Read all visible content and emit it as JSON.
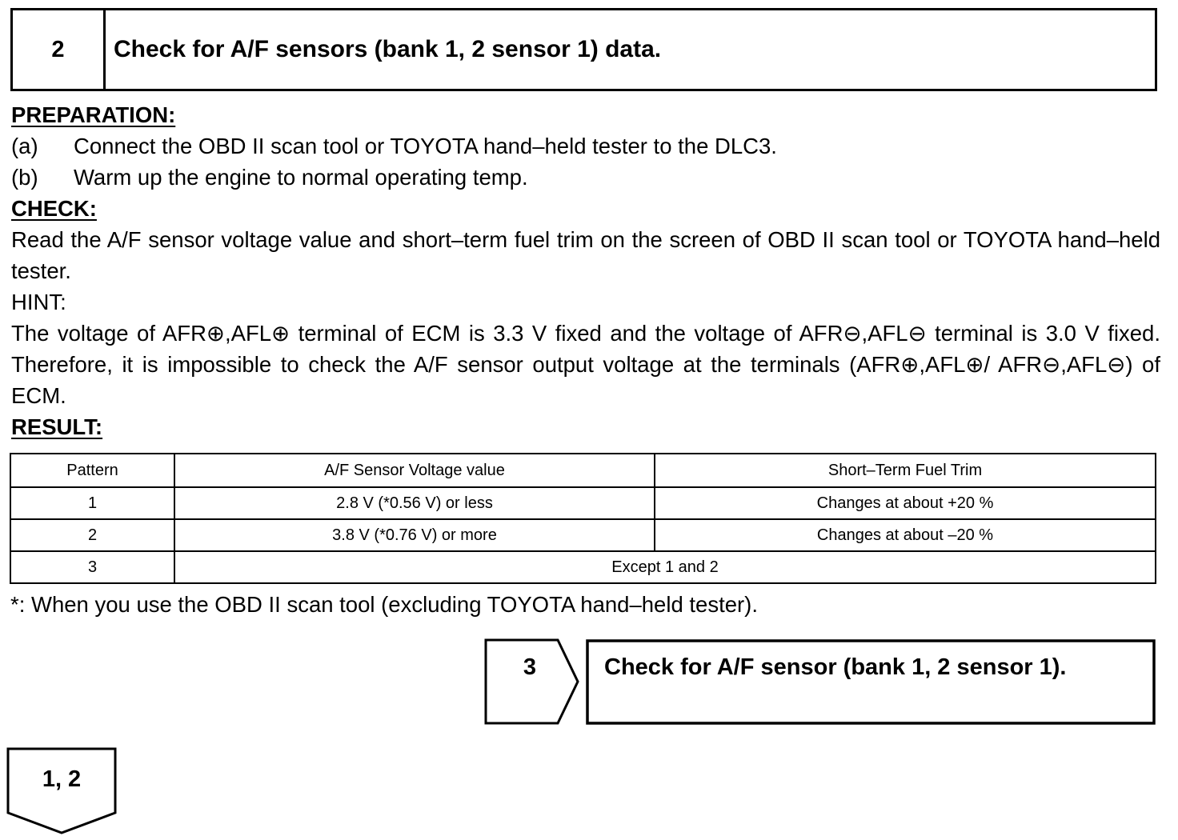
{
  "step": {
    "number": "2",
    "title": "Check for A/F sensors (bank 1, 2 sensor 1) data."
  },
  "preparation": {
    "heading": "PREPARATION:",
    "items": [
      {
        "label": "(a)",
        "text": "Connect the OBD II scan tool or TOYOTA hand–held tester to the DLC3."
      },
      {
        "label": "(b)",
        "text": "Warm up the engine to normal operating temp."
      }
    ]
  },
  "check": {
    "heading": "CHECK:",
    "text": "Read the A/F sensor voltage value and short–term fuel trim on the screen of OBD II scan tool or TOYOTA hand–held tester.",
    "hint_label": "HINT:",
    "hint_text": "The voltage of AFR⊕,AFL⊕ terminal of ECM is 3.3 V fixed and the voltage of AFR⊖,AFL⊖ terminal is 3.0 V fixed. Therefore, it is impossible to check the A/F sensor output voltage at the terminals (AFR⊕,AFL⊕/ AFR⊖,AFL⊖) of ECM."
  },
  "result": {
    "heading": "RESULT:",
    "headers": [
      "Pattern",
      "A/F Sensor Voltage value",
      "Short–Term Fuel Trim"
    ],
    "rows": [
      [
        "1",
        "2.8 V (*0.56 V) or less",
        "Changes at about +20 %"
      ],
      [
        "2",
        "3.8 V (*0.76 V) or more",
        "Changes at about –20 %"
      ]
    ],
    "row3": [
      "3",
      "Except 1 and 2"
    ],
    "footnote": "*: When you use the OBD II scan tool (excluding TOYOTA hand–held tester)."
  },
  "next_step": {
    "number": "3",
    "title": "Check for A/F sensor (bank 1, 2 sensor 1)."
  },
  "branch": {
    "label": "1, 2"
  }
}
